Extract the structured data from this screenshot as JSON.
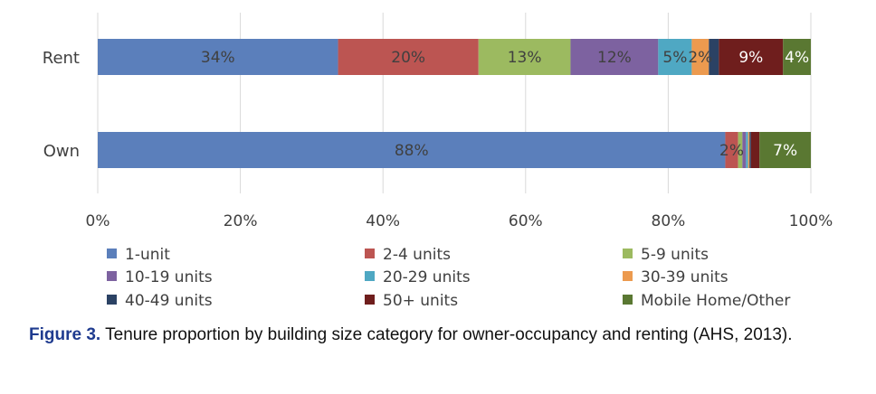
{
  "chart_data": {
    "type": "bar",
    "orientation": "horizontal",
    "stacked": true,
    "categories": [
      "Rent",
      "Own"
    ],
    "series": [
      {
        "name": "1-unit",
        "values": [
          33.7,
          88.0
        ],
        "labels": [
          "34%",
          "88%"
        ],
        "color": "#5b7fbb"
      },
      {
        "name": "2-4 units",
        "values": [
          19.7,
          1.8
        ],
        "labels": [
          "20%",
          "2%"
        ],
        "color": "#bc5552"
      },
      {
        "name": "5-9 units",
        "values": [
          12.9,
          0.6
        ],
        "labels": [
          "13%",
          ""
        ],
        "color": "#9cba60"
      },
      {
        "name": "10-19 units",
        "values": [
          12.3,
          0.5
        ],
        "labels": [
          "12%",
          ""
        ],
        "color": "#7d62a0"
      },
      {
        "name": "20-29 units",
        "values": [
          4.7,
          0.3
        ],
        "labels": [
          "5%",
          ""
        ],
        "color": "#4fa8c3"
      },
      {
        "name": "30-39 units",
        "values": [
          2.4,
          0.2
        ],
        "labels": [
          "2%",
          ""
        ],
        "color": "#ec9a4f"
      },
      {
        "name": "40-49 units",
        "values": [
          1.4,
          0.2
        ],
        "labels": [
          "",
          ""
        ],
        "color": "#2b4264"
      },
      {
        "name": "50+ units",
        "values": [
          9.0,
          1.2
        ],
        "labels": [
          "9%",
          ""
        ],
        "color": "#6f1e1d"
      },
      {
        "name": "Mobile Home/Other",
        "values": [
          3.9,
          7.2
        ],
        "labels": [
          "4%",
          "7%"
        ],
        "color": "#5a7832"
      }
    ],
    "xlim": [
      0,
      100
    ],
    "xticks": [
      "0%",
      "20%",
      "40%",
      "60%",
      "80%",
      "100%"
    ],
    "grid": true,
    "legend_position": "bottom"
  },
  "caption": {
    "figure_label": "Figure 3.",
    "text": "Tenure proportion by building size category for owner-occupancy and renting (AHS, 2013)."
  }
}
